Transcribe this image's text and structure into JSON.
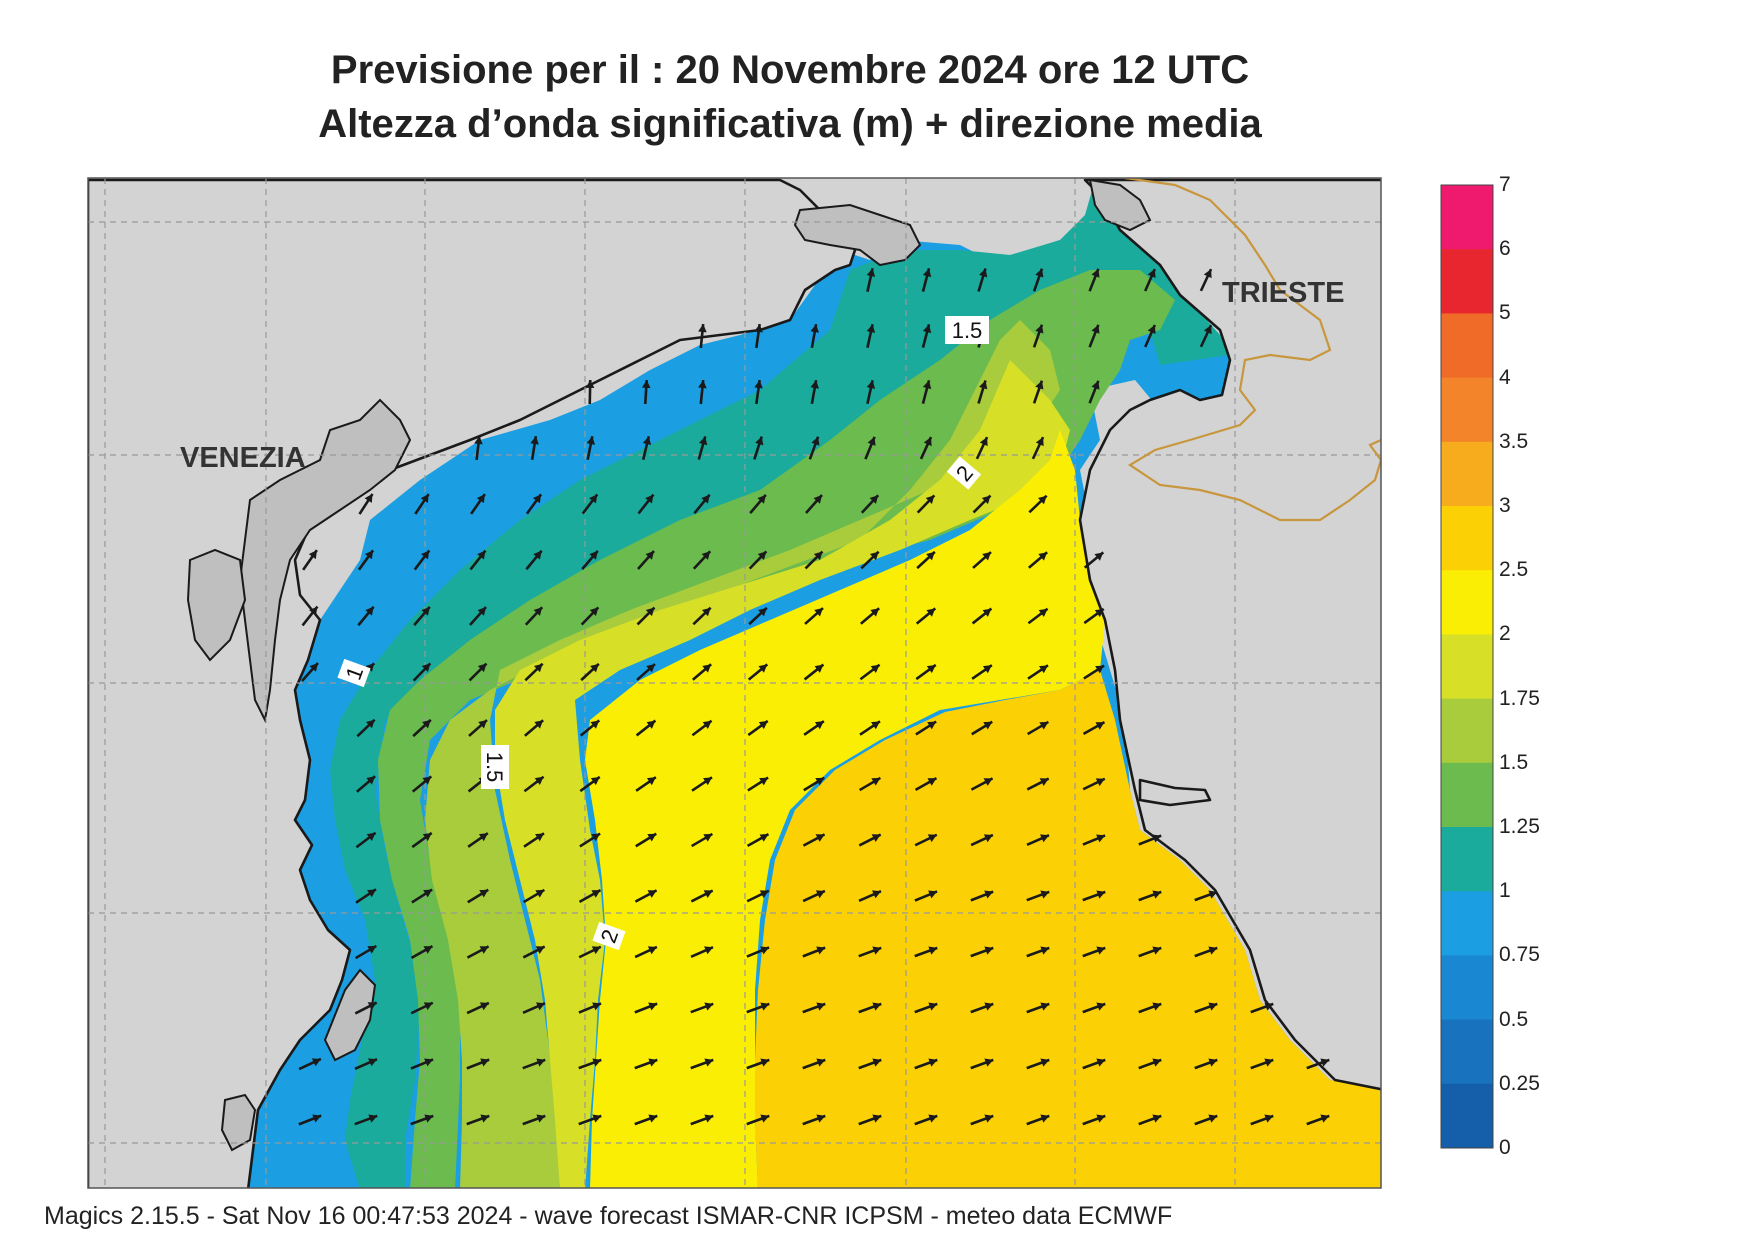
{
  "title": {
    "line1": "Previsione per il  :  20 Novembre  2024   ore 12 UTC",
    "line2": "Altezza d’onda significativa (m) + direzione media"
  },
  "map": {
    "place_labels": {
      "venezia": "VENEZIA",
      "trieste": "TRIESTE"
    },
    "contour_labels": {
      "c1": "1",
      "c15_north": "1.5",
      "c15_west": "1.5",
      "c2_north": "2",
      "c2_south": "2"
    },
    "land_color": "#d3d3d3",
    "coast_color": "#1a1a1a",
    "border_color": "#c8963c",
    "wave_direction": "arrows pointing north in the north, north-east elsewhere"
  },
  "colorbar": {
    "unit": "m",
    "levels": [
      "7",
      "6",
      "5",
      "4",
      "3.5",
      "3",
      "2.5",
      "2",
      "1.75",
      "1.5",
      "1.25",
      "1",
      "0.75",
      "0.5",
      "0.25",
      "0"
    ],
    "colors": [
      "#ef1a6e",
      "#e8262f",
      "#f06a28",
      "#f4842a",
      "#f6ac1c",
      "#fbd004",
      "#faef04",
      "#d7df26",
      "#a9cc3d",
      "#6cbb4e",
      "#1aab9d",
      "#1b9fe2",
      "#1a87d3",
      "#1872bd",
      "#155ea9"
    ]
  },
  "footer": "Magics 2.15.5 - Sat Nov 16 00:47:53 2024 - wave forecast  ISMAR-CNR  ICPSM - meteo data    ECMWF"
}
